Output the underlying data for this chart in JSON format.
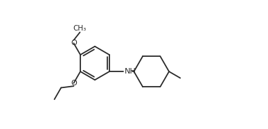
{
  "background_color": "#ffffff",
  "line_color": "#2a2a2a",
  "text_color": "#2a2a2a",
  "lw": 1.3,
  "fs": 7.5,
  "xlim": [
    0.0,
    8.5
  ],
  "ylim": [
    0.3,
    5.0
  ],
  "fig_width": 3.87,
  "fig_height": 1.86
}
